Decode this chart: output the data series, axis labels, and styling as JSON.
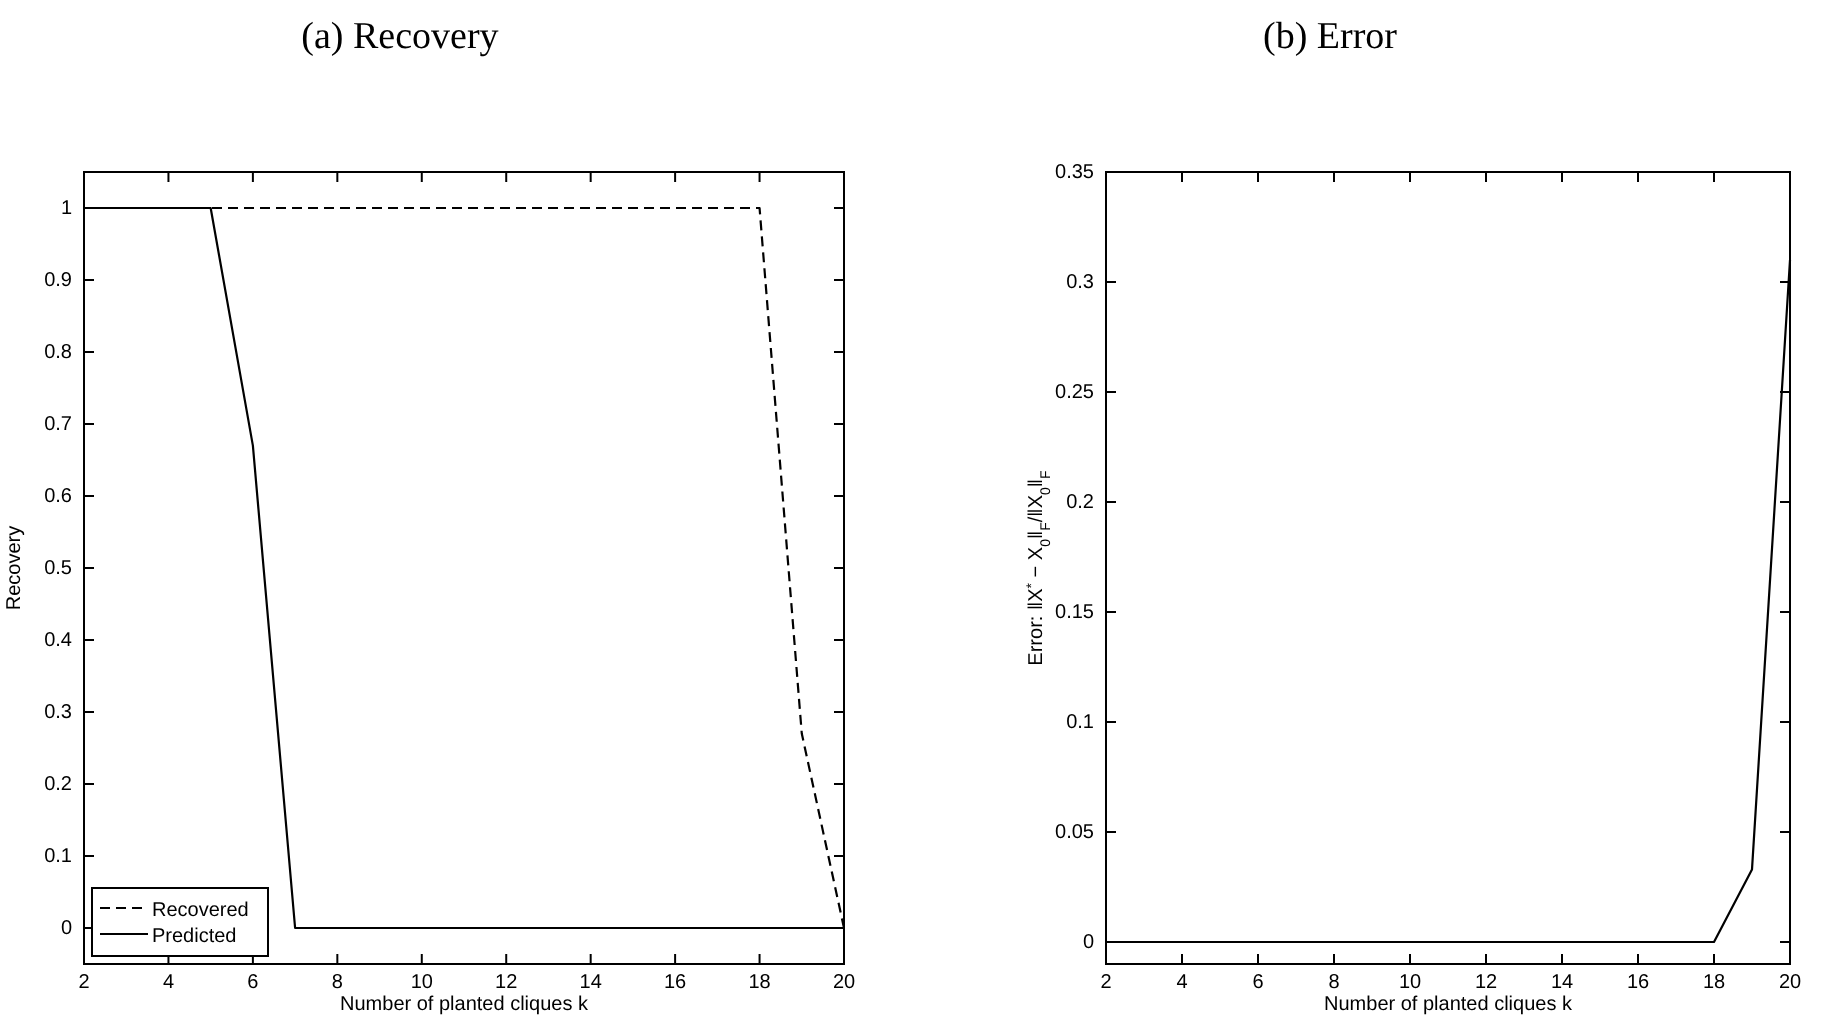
{
  "chart_data": [
    {
      "type": "line",
      "title": "(a) Recovery",
      "xlabel": "Number of planted cliques k",
      "ylabel": "Recovery",
      "x": [
        2,
        3,
        4,
        5,
        6,
        7,
        8,
        9,
        10,
        11,
        12,
        13,
        14,
        15,
        16,
        17,
        18,
        19,
        20
      ],
      "series": [
        {
          "name": "Recovered",
          "color": "#000000",
          "line_style": "dashed",
          "values": [
            1,
            1,
            1,
            1,
            1,
            1,
            1,
            1,
            1,
            1,
            1,
            1,
            1,
            1,
            1,
            1,
            1,
            0.27,
            0
          ]
        },
        {
          "name": "Predicted",
          "color": "#000000",
          "line_style": "solid",
          "values": [
            1,
            1,
            1,
            1,
            0.67,
            0,
            0,
            0,
            0,
            0,
            0,
            0,
            0,
            0,
            0,
            0,
            0,
            0,
            0
          ]
        }
      ],
      "xlim": [
        2,
        20
      ],
      "xticks": [
        2,
        4,
        6,
        8,
        10,
        12,
        14,
        16,
        18,
        20
      ],
      "ylim": [
        -0.05,
        1.05
      ],
      "yticks": [
        0,
        0.1,
        0.2,
        0.3,
        0.4,
        0.5,
        0.6,
        0.7,
        0.8,
        0.9,
        1
      ],
      "grid": false,
      "legend": "bottom left"
    },
    {
      "type": "line",
      "title": "(b) Error",
      "xlabel": "Number of planted cliques k",
      "ylabel": "Error: ‖X$^{*}$ − X$_{0}$‖$_{F}$/‖X$_{0}$‖$_{F}$",
      "x": [
        2,
        3,
        4,
        5,
        6,
        7,
        8,
        9,
        10,
        11,
        12,
        13,
        14,
        15,
        16,
        17,
        18,
        19,
        20
      ],
      "series": [
        {
          "color": "#000000",
          "values": [
            0,
            0,
            0,
            0,
            0,
            0,
            0,
            0,
            0,
            0,
            0,
            0,
            0,
            0,
            0,
            0,
            0,
            0.033,
            0.31
          ]
        }
      ],
      "xlim": [
        2,
        20
      ],
      "xticks": [
        2,
        4,
        6,
        8,
        10,
        12,
        14,
        16,
        18,
        20
      ],
      "ylim": [
        -0.01,
        0.35
      ],
      "yticks": [
        0,
        0.05,
        0.1,
        0.15,
        0.2,
        0.25,
        0.3,
        0.35
      ],
      "grid": false,
      "legend": false
    }
  ]
}
